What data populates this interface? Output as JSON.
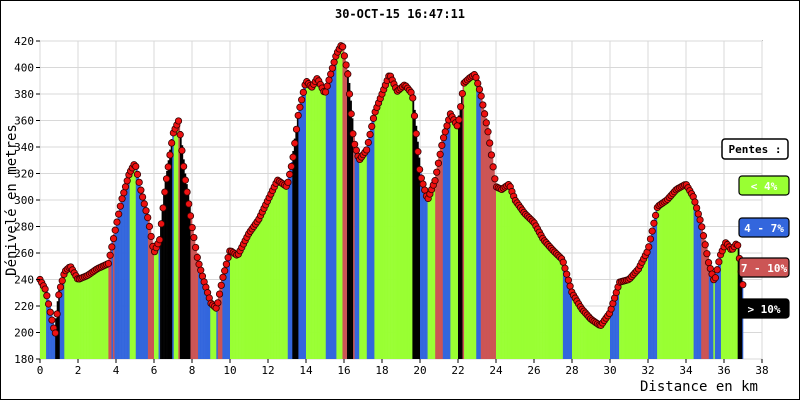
{
  "chart_data": {
    "type": "area",
    "title": "30-OCT-15 16:47:11",
    "xlabel": "Distance en km",
    "ylabel": "Dénivelé en metres",
    "xlim": [
      0,
      38
    ],
    "ylim": [
      180,
      420
    ],
    "x_ticks": [
      "0",
      "2",
      "4",
      "6",
      "8",
      "10",
      "12",
      "14",
      "16",
      "18",
      "20",
      "22",
      "24",
      "26",
      "28",
      "30",
      "32",
      "34",
      "36",
      "38"
    ],
    "y_ticks": [
      "180",
      "200",
      "220",
      "240",
      "260",
      "280",
      "300",
      "320",
      "340",
      "360",
      "380",
      "400",
      "420"
    ],
    "grid": true,
    "legend_position": "right",
    "legend": {
      "title": "Pentes :",
      "items": [
        {
          "label": "< 4%",
          "color": "#99ff33",
          "text_color": "#ffffff"
        },
        {
          "label": "4 - 7%",
          "color": "#3366dd",
          "text_color": "#ffffff"
        },
        {
          "label": "7 - 10%",
          "color": "#cc5555",
          "text_color": "#ffffff"
        },
        {
          "label": "> 10%",
          "color": "#000000",
          "text_color": "#ffffff"
        }
      ]
    },
    "series": [
      {
        "x": [
          0,
          0.3,
          0.5,
          0.8,
          1.0,
          1.3,
          1.6,
          2.0,
          2.5,
          3.0,
          3.3,
          3.6,
          4.0,
          4.3,
          4.7,
          5.0,
          5.3,
          5.7,
          6.0,
          6.3,
          6.6,
          7.0,
          7.3,
          7.6,
          8.0,
          8.3,
          8.6,
          9.0,
          9.3,
          9.6,
          10.0,
          10.4,
          11.0,
          11.5,
          12.0,
          12.5,
          13.0,
          13.3,
          13.6,
          14.0,
          14.3,
          14.6,
          15.0,
          15.3,
          15.6,
          15.9,
          16.2,
          16.5,
          16.8,
          17.2,
          17.6,
          18.0,
          18.4,
          18.8,
          19.2,
          19.6,
          20.0,
          20.4,
          20.8,
          21.2,
          21.6,
          22.0,
          22.3,
          22.6,
          22.9,
          23.2,
          23.6,
          24.0,
          24.3,
          24.7,
          25.0,
          25.5,
          26.0,
          26.5,
          27.0,
          27.5,
          28.0,
          28.5,
          29.0,
          29.5,
          30.0,
          30.5,
          31.0,
          31.5,
          32.0,
          32.5,
          33.0,
          33.5,
          34.0,
          34.4,
          34.8,
          35.2,
          35.5,
          35.8,
          36.1,
          36.4,
          36.7,
          37.0
        ],
        "y": [
          240,
          232,
          218,
          198,
          230,
          246,
          250,
          240,
          243,
          248,
          250,
          252,
          280,
          300,
          320,
          328,
          308,
          285,
          260,
          270,
          310,
          350,
          360,
          320,
          280,
          255,
          240,
          222,
          218,
          240,
          262,
          258,
          275,
          285,
          300,
          315,
          310,
          330,
          365,
          390,
          385,
          392,
          380,
          395,
          410,
          418,
          395,
          345,
          330,
          338,
          365,
          380,
          395,
          382,
          387,
          380,
          320,
          300,
          315,
          345,
          365,
          355,
          388,
          392,
          395,
          380,
          350,
          310,
          308,
          312,
          300,
          290,
          283,
          270,
          262,
          255,
          230,
          218,
          210,
          205,
          215,
          238,
          240,
          248,
          262,
          295,
          300,
          308,
          312,
          302,
          282,
          252,
          238,
          258,
          268,
          262,
          268,
          235
        ]
      }
    ]
  }
}
